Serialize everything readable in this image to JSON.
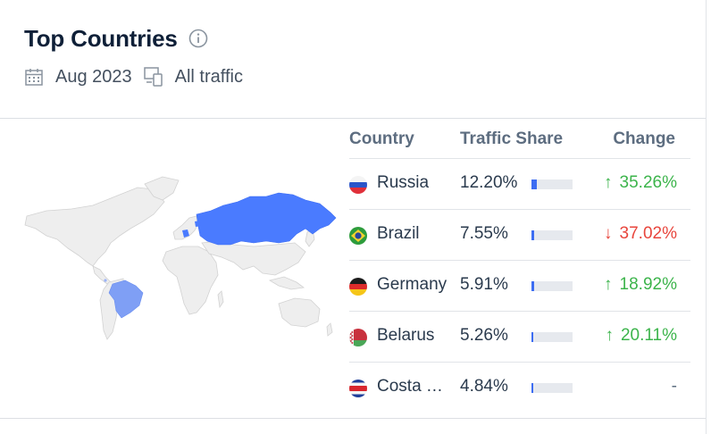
{
  "widget": {
    "title": "Top Countries",
    "date": "Aug 2023",
    "traffic": "All traffic"
  },
  "table": {
    "headers": {
      "country": "Country",
      "share": "Traffic Share",
      "change": "Change"
    },
    "rows": [
      {
        "country": "Russia",
        "share": "12.20%",
        "share_fraction": 0.122,
        "change": "35.26%",
        "direction": "up",
        "arrow": "↑"
      },
      {
        "country": "Brazil",
        "share": "7.55%",
        "share_fraction": 0.0755,
        "change": "37.02%",
        "direction": "down",
        "arrow": "↓"
      },
      {
        "country": "Germany",
        "share": "5.91%",
        "share_fraction": 0.0591,
        "change": "18.92%",
        "direction": "up",
        "arrow": "↑"
      },
      {
        "country": "Belarus",
        "share": "5.26%",
        "share_fraction": 0.0526,
        "change": "20.11%",
        "direction": "up",
        "arrow": "↑"
      },
      {
        "country": "Costa …",
        "share": "4.84%",
        "share_fraction": 0.0484,
        "change": "-",
        "direction": "none",
        "arrow": ""
      }
    ]
  },
  "colors": {
    "bar_fill": "#3d6df2",
    "map_highlight": "#4a7bff",
    "map_highlight_light": "#7f9ff5",
    "map_base": "#eeeeee",
    "up": "#3cb44b",
    "down": "#e8453c"
  },
  "icons": {
    "info": "info-icon",
    "calendar": "calendar-icon",
    "devices": "devices-icon"
  }
}
